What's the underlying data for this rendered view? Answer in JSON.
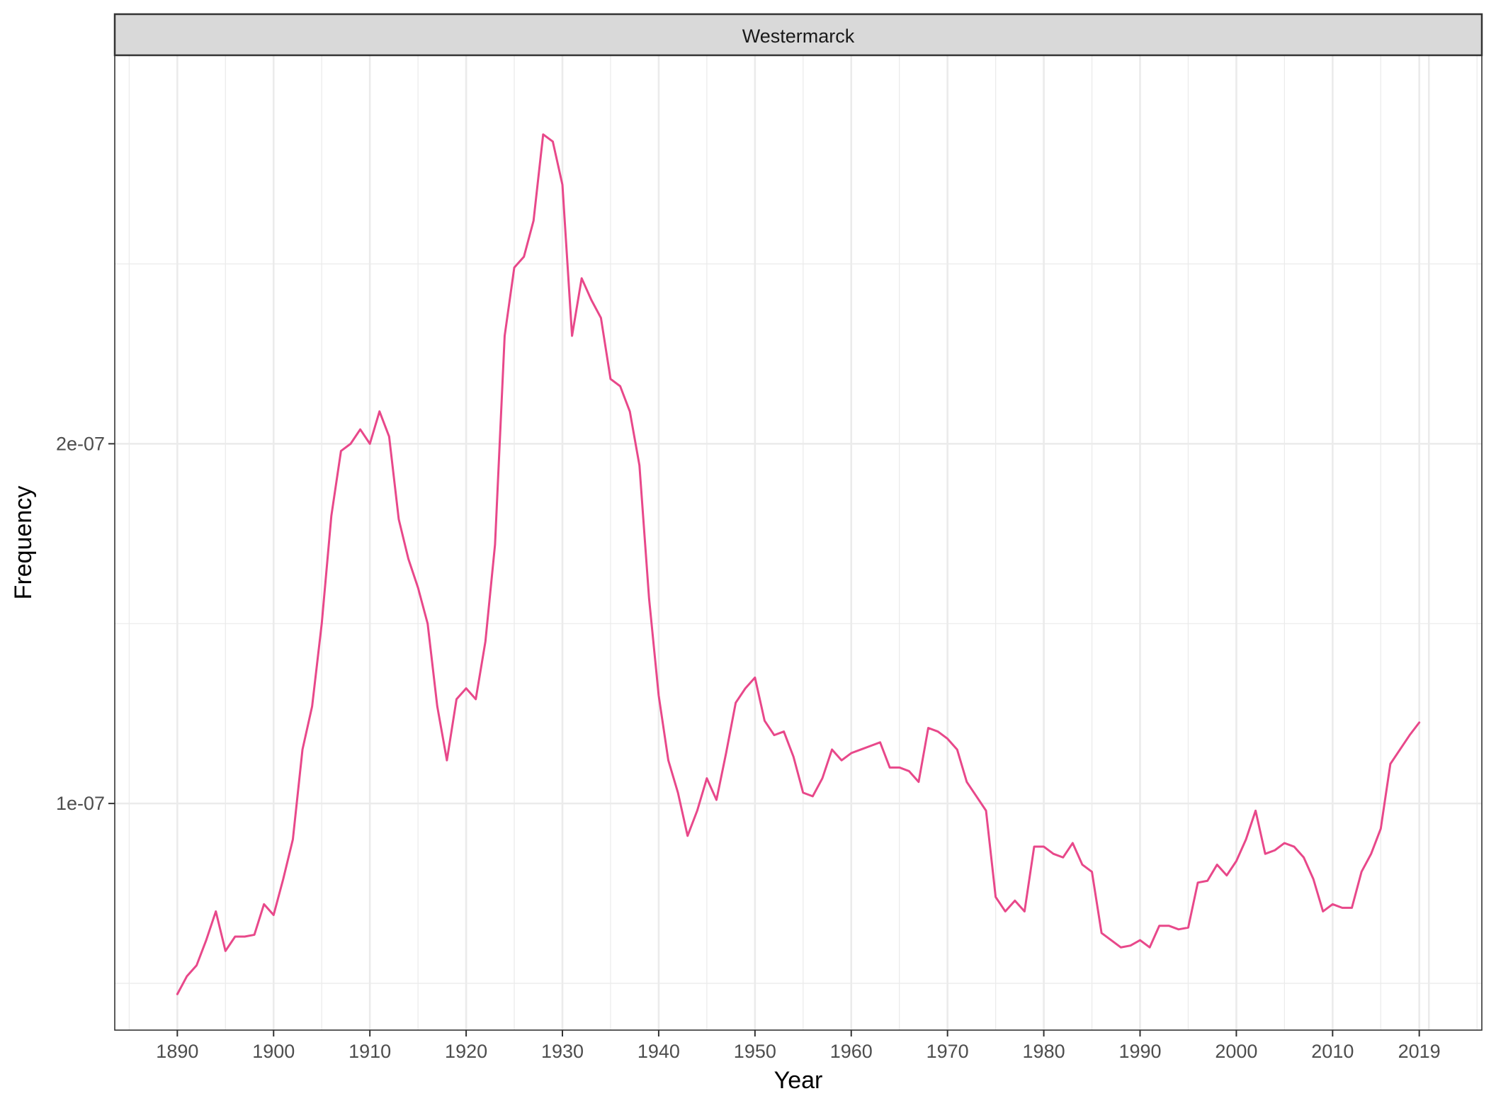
{
  "chart_data": {
    "type": "line",
    "facet_label": "Westermarck",
    "xlabel": "Year",
    "ylabel": "Frequency",
    "x_ticks": [
      1890,
      1900,
      1910,
      1920,
      1930,
      1940,
      1950,
      1960,
      1970,
      1980,
      1990,
      2000,
      2010,
      2019
    ],
    "x_tick_labels": [
      "1890",
      "1900",
      "1910",
      "1920",
      "1930",
      "1940",
      "1950",
      "1960",
      "1970",
      "1980",
      "1990",
      "2000",
      "2010",
      "2019"
    ],
    "y_ticks": [
      1e-07,
      2e-07
    ],
    "y_tick_labels": [
      "1e-07",
      "2e-07"
    ],
    "y_minor_ticks": [
      5e-08,
      1.5e-07,
      2.5e-07
    ],
    "xlim": [
      1883.5,
      2025.5
    ],
    "ylim": [
      3.7e-08,
      3.08e-07
    ],
    "grid": true,
    "series_color": "#e8488a",
    "x": [
      1890,
      1891,
      1892,
      1893,
      1894,
      1895,
      1896,
      1897,
      1898,
      1899,
      1900,
      1901,
      1902,
      1903,
      1904,
      1905,
      1906,
      1907,
      1908,
      1909,
      1910,
      1911,
      1912,
      1913,
      1914,
      1915,
      1916,
      1917,
      1918,
      1919,
      1920,
      1921,
      1922,
      1923,
      1924,
      1925,
      1926,
      1927,
      1928,
      1929,
      1930,
      1931,
      1932,
      1933,
      1934,
      1935,
      1936,
      1937,
      1938,
      1939,
      1940,
      1941,
      1942,
      1943,
      1944,
      1945,
      1946,
      1947,
      1948,
      1949,
      1950,
      1951,
      1952,
      1953,
      1954,
      1955,
      1956,
      1957,
      1958,
      1959,
      1960,
      1961,
      1962,
      1963,
      1964,
      1965,
      1966,
      1967,
      1968,
      1969,
      1970,
      1971,
      1972,
      1973,
      1974,
      1975,
      1976,
      1977,
      1978,
      1979,
      1980,
      1981,
      1982,
      1983,
      1984,
      1985,
      1986,
      1987,
      1988,
      1989,
      1990,
      1991,
      1992,
      1993,
      1994,
      1995,
      1996,
      1997,
      1998,
      1999,
      2000,
      2001,
      2002,
      2003,
      2004,
      2005,
      2006,
      2007,
      2008,
      2009,
      2010,
      2011,
      2012,
      2013,
      2014,
      2015,
      2016,
      2017,
      2018,
      2019
    ],
    "y": [
      4.7e-08,
      5.2e-08,
      5.5e-08,
      6.2e-08,
      7e-08,
      5.9e-08,
      6.3e-08,
      6.3e-08,
      6.35e-08,
      7.2e-08,
      6.9e-08,
      7.9e-08,
      9e-08,
      1.15e-07,
      1.27e-07,
      1.5e-07,
      1.8e-07,
      1.98e-07,
      2e-07,
      2.04e-07,
      2e-07,
      2.09e-07,
      2.02e-07,
      1.79e-07,
      1.68e-07,
      1.6e-07,
      1.5e-07,
      1.27e-07,
      1.12e-07,
      1.29e-07,
      1.32e-07,
      1.29e-07,
      1.45e-07,
      1.72e-07,
      2.3e-07,
      2.49e-07,
      2.52e-07,
      2.62e-07,
      2.86e-07,
      2.84e-07,
      2.72e-07,
      2.3e-07,
      2.46e-07,
      2.4e-07,
      2.35e-07,
      2.18e-07,
      2.16e-07,
      2.09e-07,
      1.94e-07,
      1.57e-07,
      1.3e-07,
      1.12e-07,
      1.03e-07,
      9.1e-08,
      9.8e-08,
      1.07e-07,
      1.01e-07,
      1.14e-07,
      1.28e-07,
      1.32e-07,
      1.35e-07,
      1.23e-07,
      1.19e-07,
      1.2e-07,
      1.13e-07,
      1.03e-07,
      1.02e-07,
      1.07e-07,
      1.15e-07,
      1.12e-07,
      1.14e-07,
      1.15e-07,
      1.16e-07,
      1.17e-07,
      1.1e-07,
      1.1e-07,
      1.09e-07,
      1.06e-07,
      1.21e-07,
      1.2e-07,
      1.18e-07,
      1.15e-07,
      1.06e-07,
      1.02e-07,
      9.8e-08,
      7.4e-08,
      7e-08,
      7.3e-08,
      7e-08,
      8.8e-08,
      8.8e-08,
      8.6e-08,
      8.5e-08,
      8.9e-08,
      8.3e-08,
      8.1e-08,
      6.4e-08,
      6.2e-08,
      6e-08,
      6.05e-08,
      6.2e-08,
      6e-08,
      6.6e-08,
      6.6e-08,
      6.5e-08,
      6.55e-08,
      7.8e-08,
      7.85e-08,
      8.3e-08,
      8e-08,
      8.4e-08,
      9e-08,
      9.8e-08,
      8.6e-08,
      8.7e-08,
      8.9e-08,
      8.8e-08,
      8.5e-08,
      7.9e-08,
      7e-08,
      7.2e-08,
      7.1e-08,
      7.1e-08,
      8.1e-08,
      8.6e-08,
      9.3e-08,
      1.11e-07,
      1.15e-07,
      1.19e-07,
      1.225e-07
    ]
  }
}
